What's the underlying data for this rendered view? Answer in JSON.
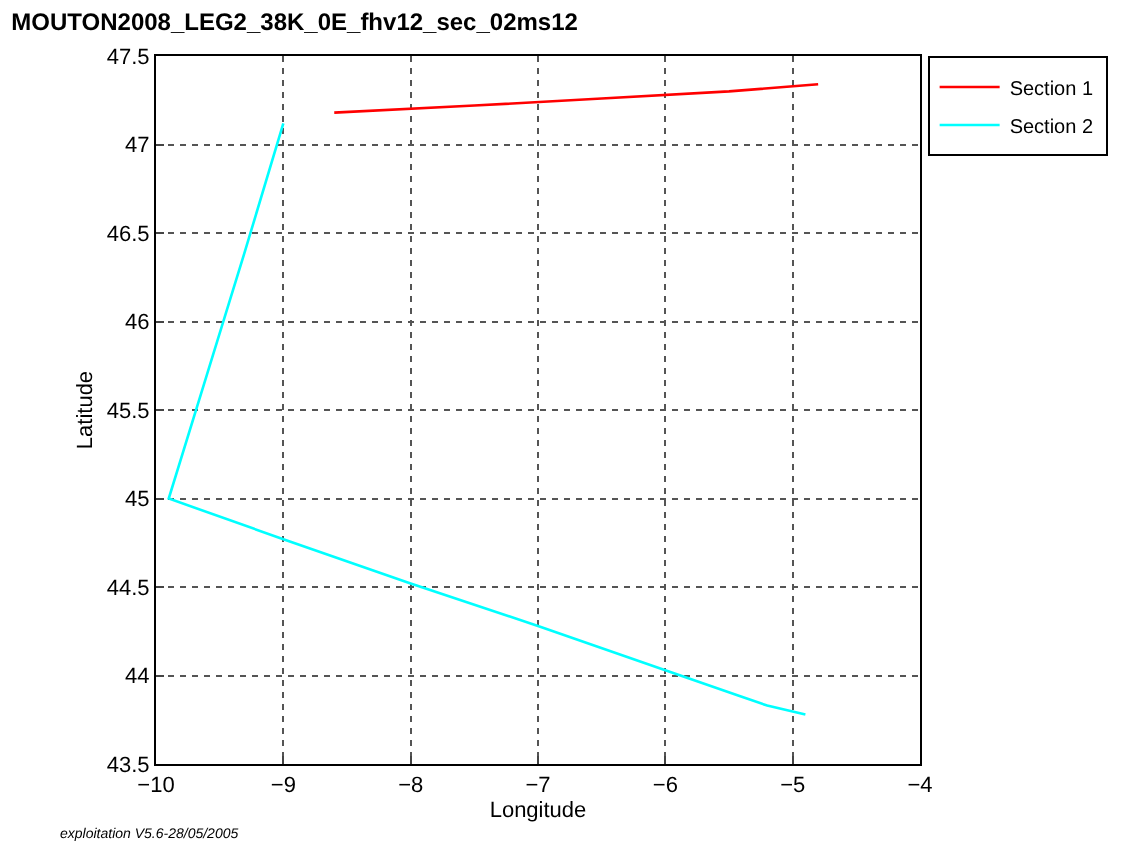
{
  "chart_data": {
    "type": "line",
    "title": "MOUTON2008_LEG2_38K_0E_fhv12_sec_02ms12",
    "xlabel": "Longitude",
    "ylabel": "Latitude",
    "series": [
      {
        "name": "Section 1",
        "color": "#ff0000",
        "x": [
          -8.6,
          -7.5,
          -6.5,
          -5.5,
          -4.8
        ],
        "values": [
          47.18,
          47.22,
          47.26,
          47.3,
          47.34
        ]
      },
      {
        "name": "Section 2",
        "color": "#00ffff",
        "x": [
          -9.0,
          -9.3,
          -9.6,
          -9.9,
          -9.0,
          -8.0,
          -7.0,
          -6.0,
          -5.4,
          -5.2,
          -4.9
        ],
        "values": [
          47.12,
          46.4,
          45.7,
          45.0,
          44.77,
          44.52,
          44.28,
          44.03,
          43.88,
          43.83,
          43.78
        ]
      }
    ],
    "xlim": [
      -10,
      -4
    ],
    "xticks": [
      -10,
      -9,
      -8,
      -7,
      -6,
      -5,
      -4
    ],
    "ylim": [
      43.5,
      47.5
    ],
    "yticks": [
      43.5,
      44,
      44.5,
      45,
      45.5,
      46,
      46.5,
      47,
      47.5
    ],
    "grid": true,
    "legend": "top right",
    "line_style": "solid",
    "marker": "none",
    "annotations": [
      "exploitation V5.6-28/05/2005"
    ]
  }
}
